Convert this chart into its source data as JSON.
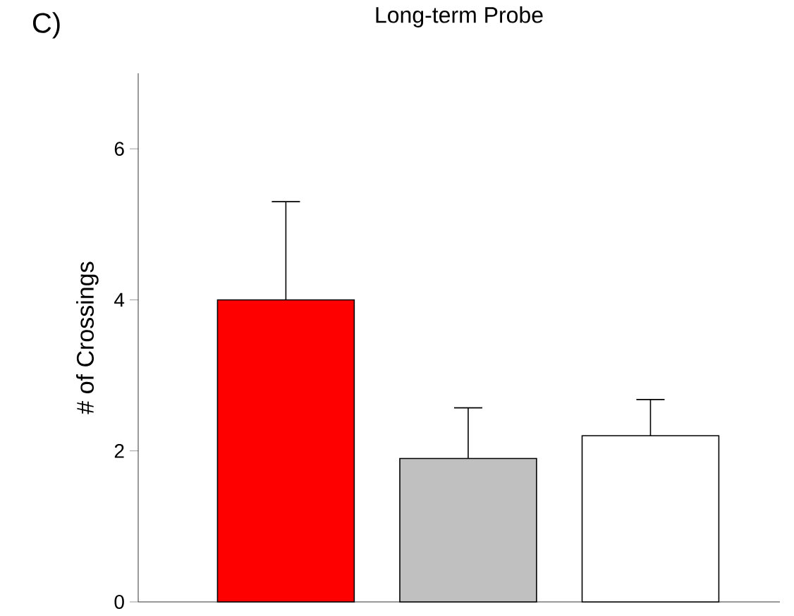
{
  "chart_data": {
    "type": "bar",
    "title": "Long-term Probe",
    "ylabel": "# of Crossings",
    "annotations": [
      "C)"
    ],
    "categories": [
      null,
      null,
      null
    ],
    "values": [
      4.0,
      1.9,
      2.2
    ],
    "colors": [
      "#ff0000",
      "#c0c0c0",
      "#ffffff"
    ],
    "errors": [
      [
        4.0,
        5.3
      ],
      [
        1.9,
        2.57
      ],
      [
        2.2,
        2.68
      ]
    ],
    "ylim": [
      0,
      7
    ],
    "yticks": [
      0,
      2,
      4,
      6
    ],
    "grid": false
  }
}
